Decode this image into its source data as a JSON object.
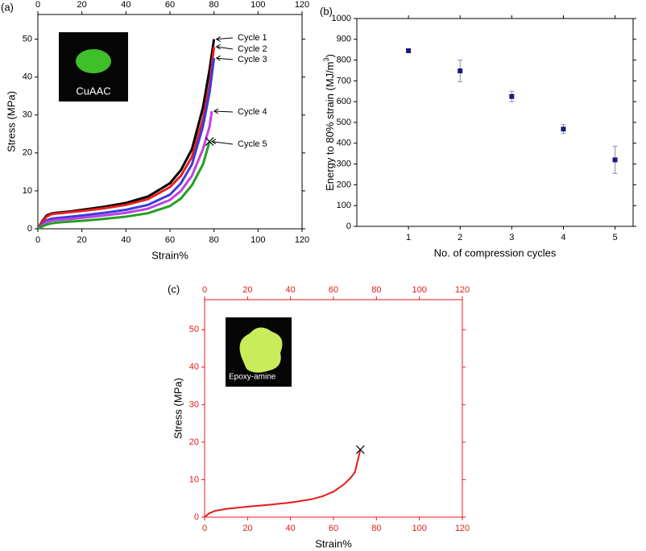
{
  "chart_data": [
    {
      "type": "line",
      "panel": "(a)",
      "xlabel": "Strain%",
      "ylabel": "Stress (MPa)",
      "inset_label": "CuAAC",
      "xlim": [
        0,
        120
      ],
      "xticks": [
        0,
        20,
        40,
        60,
        80,
        100,
        120
      ],
      "ylim": [
        0,
        56.5
      ],
      "yticks": [
        0,
        10,
        20,
        30,
        40,
        50
      ],
      "top_tick_labels": true,
      "axis_color": "#000000",
      "series": [
        {
          "name": "Cycle 1",
          "color": "#000000",
          "x": [
            0,
            2,
            4,
            6,
            8,
            10,
            15,
            20,
            30,
            40,
            50,
            60,
            65,
            70,
            75,
            78,
            80
          ],
          "values": [
            0,
            2,
            3.5,
            4,
            4.2,
            4.3,
            4.6,
            5,
            5.8,
            6.8,
            8.5,
            12,
            15.5,
            21,
            32,
            42,
            50
          ]
        },
        {
          "name": "Cycle 2",
          "color": "#e8201c",
          "x": [
            0,
            2,
            4,
            6,
            8,
            10,
            15,
            20,
            30,
            40,
            50,
            60,
            65,
            70,
            75,
            78,
            80
          ],
          "values": [
            0,
            1.8,
            3.2,
            3.8,
            4,
            4.1,
            4.4,
            4.7,
            5.4,
            6.3,
            7.8,
            11,
            14,
            19,
            29,
            38,
            48
          ]
        },
        {
          "name": "Cycle 3",
          "color": "#3b3be0",
          "x": [
            0,
            2,
            4,
            6,
            8,
            10,
            15,
            20,
            30,
            40,
            50,
            60,
            65,
            70,
            75,
            78,
            80
          ],
          "values": [
            0,
            1.2,
            2.2,
            2.6,
            2.8,
            2.9,
            3.2,
            3.5,
            4.2,
            5,
            6.3,
            9,
            12,
            17,
            27,
            36,
            45
          ]
        },
        {
          "name": "Cycle 4",
          "color": "#c040e0",
          "x": [
            0,
            2,
            4,
            6,
            8,
            10,
            15,
            20,
            30,
            40,
            50,
            60,
            65,
            70,
            75,
            78,
            79
          ],
          "values": [
            0,
            1,
            1.8,
            2.1,
            2.3,
            2.4,
            2.6,
            2.9,
            3.5,
            4.2,
            5.3,
            7.6,
            10,
            14,
            21,
            27,
            31
          ]
        },
        {
          "name": "Cycle 5",
          "color": "#22a022",
          "x": [
            0,
            2,
            4,
            6,
            8,
            10,
            15,
            20,
            30,
            40,
            50,
            60,
            65,
            70,
            75,
            78
          ],
          "values": [
            0,
            0.6,
            1.1,
            1.4,
            1.6,
            1.7,
            1.9,
            2.1,
            2.6,
            3.2,
            4.1,
            6,
            8,
            11.5,
            17,
            23
          ],
          "end_marker": "x"
        }
      ]
    },
    {
      "type": "scatter",
      "panel": "(b)",
      "xlabel": "No. of compression cycles",
      "ylabel": "Energy to 80%  strain (MJ/m",
      "ylabel_sup": "3",
      "ylabel_end": ")",
      "xlim": [
        0,
        5.35
      ],
      "xticks": [
        1,
        2,
        3,
        4,
        5
      ],
      "ylim": [
        0,
        1000
      ],
      "yticks": [
        0,
        100,
        200,
        300,
        400,
        500,
        600,
        700,
        800,
        900,
        1000
      ],
      "top_tick_labels": false,
      "axis_color": "#000000",
      "series": [
        {
          "color": "#1a1a80",
          "x": [
            1,
            2,
            3,
            4,
            5
          ],
          "values": [
            845,
            748,
            625,
            468,
            320
          ],
          "errors": [
            8,
            52,
            25,
            22,
            65
          ]
        }
      ]
    },
    {
      "type": "line",
      "panel": "(c)",
      "xlabel": "Strain%",
      "ylabel": "Stress (MPa)",
      "inset_label": "Epoxy-amine",
      "xlim": [
        0,
        120
      ],
      "xticks": [
        0,
        20,
        40,
        60,
        80,
        100,
        120
      ],
      "ylim": [
        0,
        58
      ],
      "yticks": [
        0,
        10,
        20,
        30,
        40,
        50
      ],
      "top_tick_labels": true,
      "axis_color": "#e41a1c",
      "series": [
        {
          "color": "#e41a1c",
          "x": [
            0,
            2,
            5,
            10,
            20,
            30,
            40,
            50,
            55,
            60,
            65,
            68,
            70,
            72.5
          ],
          "values": [
            0,
            1,
            1.7,
            2.2,
            2.8,
            3.3,
            3.9,
            4.8,
            5.6,
            6.8,
            8.8,
            10.5,
            12,
            18
          ],
          "end_marker": "x"
        }
      ]
    }
  ]
}
